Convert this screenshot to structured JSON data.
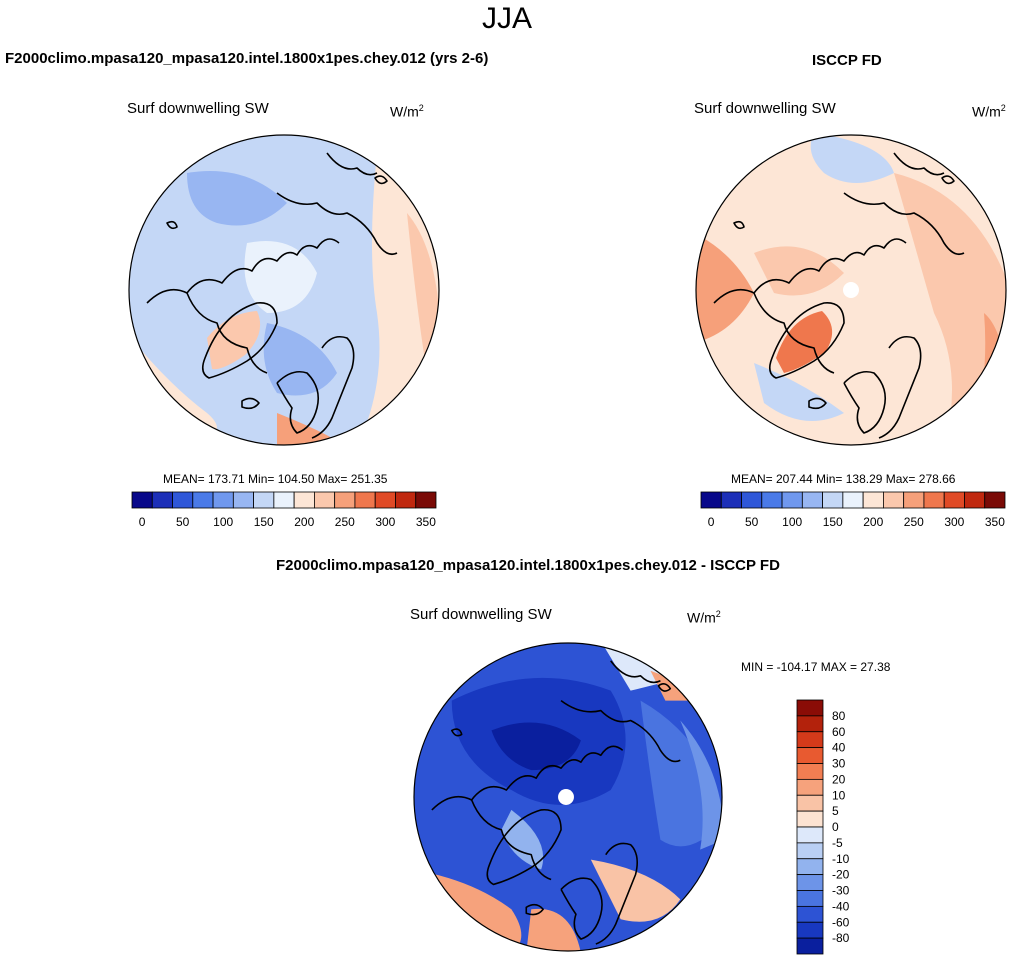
{
  "figure": {
    "season": "JJA",
    "top_left": {
      "title": "F2000climo.mpasa120_mpasa120.intel.1800x1pes.chey.012 (yrs 2-6)",
      "variable": "Surf downwelling SW",
      "units": "W/m",
      "units_exp": "2",
      "stats": "MEAN= 173.71  Min= 104.50  Max= 251.35"
    },
    "top_right": {
      "title": "ISCCP FD",
      "variable": "Surf downwelling SW",
      "units": "W/m",
      "units_exp": "2",
      "stats": "MEAN= 207.44  Min= 138.29  Max= 278.66"
    },
    "bottom": {
      "title": "F2000climo.mpasa120_mpasa120.intel.1800x1pes.chey.012 - ISCCP FD",
      "variable": "Surf downwelling SW",
      "units": "W/m",
      "units_exp": "2",
      "stats": "MIN = -104.17 MAX =  27.38"
    }
  },
  "chart_data": [
    {
      "type": "heatmap",
      "projection": "north-polar-stereographic",
      "title": "F2000climo.mpasa120_mpasa120.intel.1800x1pes.chey.012 (yrs 2-6)",
      "variable": "Surf downwelling SW",
      "mean": 173.71,
      "min": 104.5,
      "max": 251.35,
      "colorbar": {
        "orientation": "horizontal",
        "tick_labels": [
          "0",
          "50",
          "100",
          "150",
          "200",
          "250",
          "300",
          "350"
        ],
        "colors": [
          "#08088a",
          "#1c2fb8",
          "#2f57d8",
          "#4a7ae8",
          "#7098ee",
          "#98b6f2",
          "#c4d7f6",
          "#eaf2fc",
          "#fde6d6",
          "#fbc8ad",
          "#f6a07a",
          "#ef774d",
          "#e04a26",
          "#c0280f",
          "#7a0a06"
        ]
      }
    },
    {
      "type": "heatmap",
      "projection": "north-polar-stereographic",
      "title": "ISCCP FD",
      "variable": "Surf downwelling SW",
      "mean": 207.44,
      "min": 138.29,
      "max": 278.66,
      "colorbar": {
        "orientation": "horizontal",
        "tick_labels": [
          "0",
          "50",
          "100",
          "150",
          "200",
          "250",
          "300",
          "350"
        ],
        "colors": [
          "#08088a",
          "#1c2fb8",
          "#2f57d8",
          "#4a7ae8",
          "#7098ee",
          "#98b6f2",
          "#c4d7f6",
          "#eaf2fc",
          "#fde6d6",
          "#fbc8ad",
          "#f6a07a",
          "#ef774d",
          "#e04a26",
          "#c0280f",
          "#7a0a06"
        ]
      }
    },
    {
      "type": "heatmap",
      "projection": "north-polar-stereographic",
      "title": "F2000climo.mpasa120_mpasa120.intel.1800x1pes.chey.012 - ISCCP FD",
      "variable": "Surf downwelling SW",
      "min": -104.17,
      "max": 27.38,
      "colorbar": {
        "orientation": "vertical",
        "tick_labels": [
          "80",
          "60",
          "40",
          "30",
          "20",
          "10",
          "5",
          "0",
          "-5",
          "-10",
          "-20",
          "-30",
          "-40",
          "-60",
          "-80"
        ],
        "colors": [
          "#8a0c06",
          "#b3220c",
          "#d43a1a",
          "#e85a30",
          "#f27e52",
          "#f6a27c",
          "#f9c3a6",
          "#fce3d2",
          "#dde8fa",
          "#b9cff4",
          "#92b3ee",
          "#6d94e8",
          "#4a74e0",
          "#2d53d4",
          "#1838c0",
          "#0a1f9e"
        ]
      }
    }
  ]
}
